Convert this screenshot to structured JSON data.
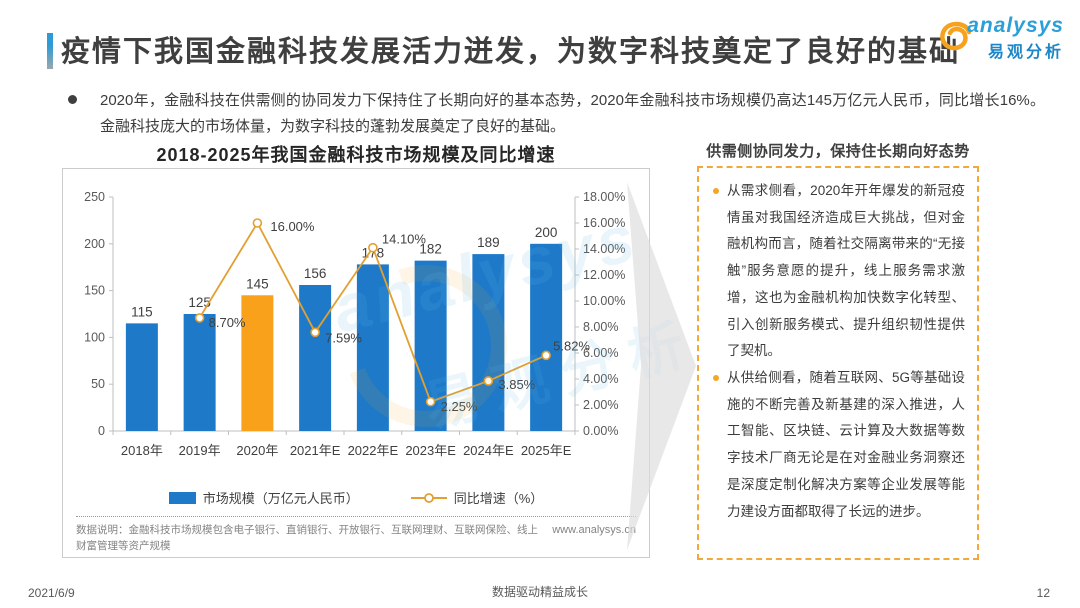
{
  "page": {
    "title": "疫情下我国金融科技发展活力迸发，为数字科技奠定了良好的基础",
    "footer": {
      "date": "2021/6/9",
      "center": "数据驱动精益成长",
      "page_number": "12"
    }
  },
  "logo": {
    "icon": "analysys-swirl-icon",
    "en": "analysys",
    "cn": "易观分析"
  },
  "intro_bullet": "2020年，金融科技在供需侧的协同发力下保持住了长期向好的基本态势，2020年金融科技市场规模仍高达145万亿元人民币，同比增长16%。金融科技庞大的市场体量，为数字科技的蓬勃发展奠定了良好的基础。",
  "chart_title": "2018-2025年我国金融科技市场规模及同比增速",
  "chart_data": {
    "type": "bar+line combo",
    "categories": [
      "2018年",
      "2019年",
      "2020年",
      "2021年E",
      "2022年E",
      "2023年E",
      "2024年E",
      "2025年E"
    ],
    "series": [
      {
        "name": "市场规模（万亿元人民币）",
        "type": "bar",
        "axis": "left",
        "values": [
          115,
          125,
          145,
          156,
          178,
          182,
          189,
          200
        ],
        "color": "#1e7ac9",
        "highlight_index": 2,
        "highlight_color": "#f9a11b"
      },
      {
        "name": "同比增速（%）",
        "type": "line",
        "axis": "right",
        "values": [
          null,
          8.7,
          16.0,
          7.59,
          14.1,
          2.25,
          3.85,
          5.82
        ],
        "point_labels": [
          "",
          "8.70%",
          "16.00%",
          "7.59%",
          "14.10%",
          "2.25%",
          "3.85%",
          "5.82%"
        ],
        "color": "#e2a033",
        "marker": "open-circle"
      }
    ],
    "left_axis": {
      "min": 0,
      "max": 250,
      "step": 50
    },
    "right_axis": {
      "min": 0,
      "max": 18,
      "step": 2,
      "suffix": "%",
      "decimals": 2
    },
    "grid": false,
    "legend_position": "bottom"
  },
  "chart_footnote": {
    "left": "数据说明：金融科技市场规模包含电子银行、直销银行、开放银行、互联网理财、互联网保险、线上财富管理等资产规模",
    "right": "www.analysys.cn"
  },
  "right_panel": {
    "title": "供需侧协同发力，保持住长期向好态势",
    "bullets": [
      "从需求侧看，2020年开年爆发的新冠疫情虽对我国经济造成巨大挑战，但对金融机构而言，随着社交隔离带来的“无接触”服务意愿的提升，线上服务需求激增，这也为金融机构加快数字化转型、引入创新服务模式、提升组织韧性提供了契机。",
      "从供给侧看，随着互联网、5G等基础设施的不断完善及新基建的深入推进，人工智能、区块链、云计算及大数据等数字技术厂商无论是在对金融业务洞察还是深度定制化解决方案等企业发展等能力建设方面都取得了长远的进步。"
    ]
  },
  "colors": {
    "bar_blue": "#1e7ac9",
    "bar_highlight_orange": "#f9a11b",
    "growth_line_orange": "#e2a033",
    "panel_border_orange": "#f2a93b",
    "accent_blue": "#2e9bd6",
    "arrow_gray": "#dcdcdc",
    "logo_blue": "#2b9fd8",
    "logo_orange": "#f6a21e"
  },
  "watermark": {
    "en": "analysys",
    "cn": "易观分析"
  }
}
